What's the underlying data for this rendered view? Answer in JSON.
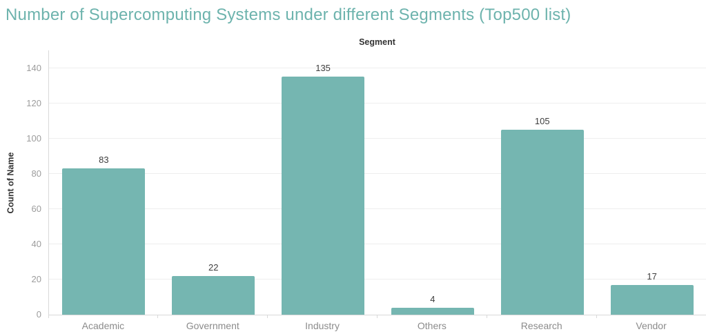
{
  "title": "Number of Supercomputing Systems under different Segments (Top500 list)",
  "colors": {
    "title": "#6db3ad",
    "bar": "#75b6b1",
    "gridline": "#eeeeee",
    "axis_line": "#d9d9d9"
  },
  "chart_data": {
    "type": "bar",
    "title": "Number of Supercomputing Systems under different Segments (Top500 list)",
    "x_axis_title": "Segment",
    "ylabel": "Count of Name",
    "xlabel": "",
    "categories": [
      "Academic",
      "Government",
      "Industry",
      "Others",
      "Research",
      "Vendor"
    ],
    "values": [
      83,
      22,
      135,
      4,
      105,
      17
    ],
    "ylim": [
      0,
      150
    ],
    "yticks": [
      0,
      20,
      40,
      60,
      80,
      100,
      120,
      140
    ],
    "grid": true,
    "legend": false,
    "data_labels": true
  }
}
